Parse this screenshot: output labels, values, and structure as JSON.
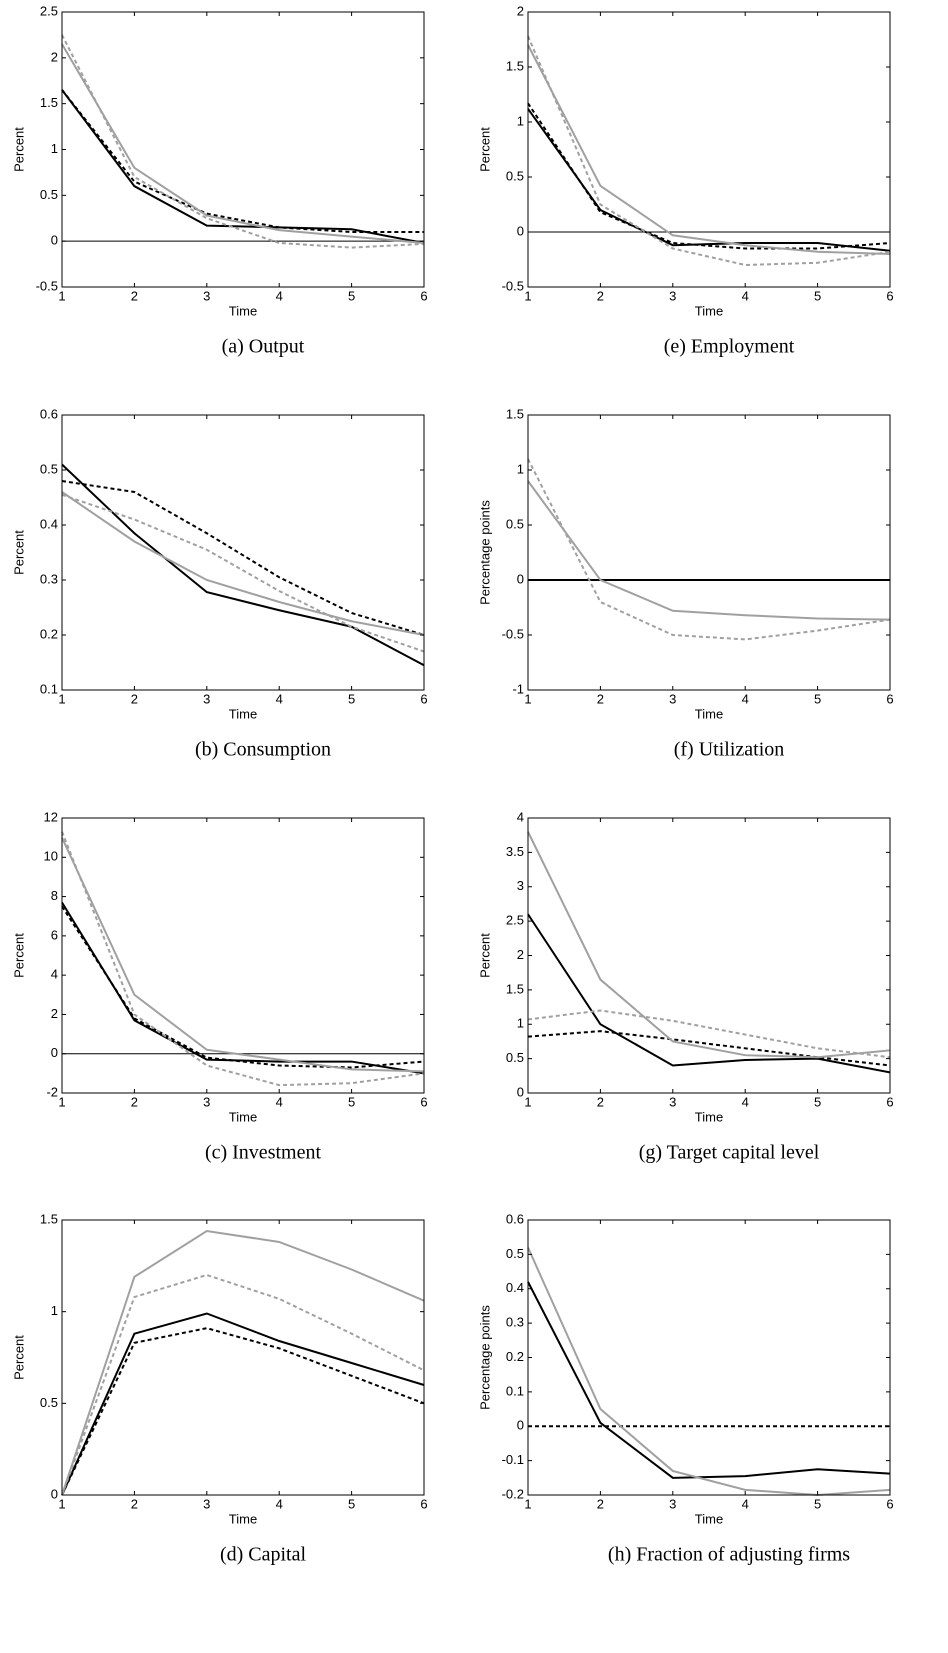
{
  "chart_data": [
    {
      "type": "line",
      "caption": "(a) Output",
      "xlabel": "Time",
      "ylabel": "Percent",
      "x": [
        1,
        2,
        3,
        4,
        5,
        6
      ],
      "xlim": [
        1,
        6
      ],
      "xticks": [
        1,
        2,
        3,
        4,
        5,
        6
      ],
      "ylim": [
        -0.5,
        2.5
      ],
      "yticks": [
        -0.5,
        0,
        0.5,
        1,
        1.5,
        2,
        2.5
      ],
      "zero_line": true,
      "series": [
        {
          "color": "#000000",
          "dash": false,
          "values": [
            1.65,
            0.6,
            0.17,
            0.15,
            0.13,
            -0.02
          ]
        },
        {
          "color": "#000000",
          "dash": true,
          "values": [
            1.65,
            0.65,
            0.3,
            0.15,
            0.1,
            0.1
          ]
        },
        {
          "color": "#a0a0a0",
          "dash": false,
          "values": [
            2.15,
            0.8,
            0.28,
            0.12,
            0.05,
            -0.02
          ]
        },
        {
          "color": "#a0a0a0",
          "dash": true,
          "values": [
            2.25,
            0.7,
            0.25,
            -0.02,
            -0.07,
            -0.03
          ]
        }
      ]
    },
    {
      "type": "line",
      "caption": "(b) Consumption",
      "xlabel": "Time",
      "ylabel": "Percent",
      "x": [
        1,
        2,
        3,
        4,
        5,
        6
      ],
      "xlim": [
        1,
        6
      ],
      "xticks": [
        1,
        2,
        3,
        4,
        5,
        6
      ],
      "ylim": [
        0.1,
        0.6
      ],
      "yticks": [
        0.1,
        0.2,
        0.3,
        0.4,
        0.5,
        0.6
      ],
      "zero_line": false,
      "series": [
        {
          "color": "#000000",
          "dash": false,
          "values": [
            0.51,
            0.385,
            0.278,
            0.245,
            0.215,
            0.145
          ]
        },
        {
          "color": "#000000",
          "dash": true,
          "values": [
            0.48,
            0.46,
            0.385,
            0.305,
            0.24,
            0.2
          ]
        },
        {
          "color": "#a0a0a0",
          "dash": false,
          "values": [
            0.46,
            0.37,
            0.3,
            0.26,
            0.225,
            0.2
          ]
        },
        {
          "color": "#a0a0a0",
          "dash": true,
          "values": [
            0.455,
            0.41,
            0.355,
            0.28,
            0.215,
            0.17
          ]
        }
      ]
    },
    {
      "type": "line",
      "caption": "(c) Investment",
      "xlabel": "Time",
      "ylabel": "Percent",
      "x": [
        1,
        2,
        3,
        4,
        5,
        6
      ],
      "xlim": [
        1,
        6
      ],
      "xticks": [
        1,
        2,
        3,
        4,
        5,
        6
      ],
      "ylim": [
        -2,
        12
      ],
      "yticks": [
        -2,
        0,
        2,
        4,
        6,
        8,
        10,
        12
      ],
      "zero_line": true,
      "series": [
        {
          "color": "#000000",
          "dash": false,
          "values": [
            7.7,
            1.7,
            -0.3,
            -0.4,
            -0.4,
            -1.0
          ]
        },
        {
          "color": "#000000",
          "dash": true,
          "values": [
            7.5,
            1.8,
            -0.2,
            -0.6,
            -0.7,
            -0.4
          ]
        },
        {
          "color": "#a0a0a0",
          "dash": false,
          "values": [
            11,
            3.0,
            0.2,
            -0.3,
            -0.8,
            -0.9
          ]
        },
        {
          "color": "#a0a0a0",
          "dash": true,
          "values": [
            11.3,
            2.0,
            -0.6,
            -1.6,
            -1.5,
            -1.0
          ]
        }
      ]
    },
    {
      "type": "line",
      "caption": "(d) Capital",
      "xlabel": "Time",
      "ylabel": "Percent",
      "x": [
        1,
        2,
        3,
        4,
        5,
        6
      ],
      "xlim": [
        1,
        6
      ],
      "xticks": [
        1,
        2,
        3,
        4,
        5,
        6
      ],
      "ylim": [
        0,
        1.5
      ],
      "yticks": [
        0,
        0.5,
        1,
        1.5
      ],
      "zero_line": false,
      "series": [
        {
          "color": "#000000",
          "dash": false,
          "values": [
            0,
            0.88,
            0.99,
            0.84,
            0.72,
            0.6
          ]
        },
        {
          "color": "#000000",
          "dash": true,
          "values": [
            0,
            0.83,
            0.91,
            0.8,
            0.65,
            0.5
          ]
        },
        {
          "color": "#a0a0a0",
          "dash": false,
          "values": [
            0,
            1.19,
            1.44,
            1.38,
            1.23,
            1.06
          ]
        },
        {
          "color": "#a0a0a0",
          "dash": true,
          "values": [
            0,
            1.08,
            1.2,
            1.07,
            0.88,
            0.68
          ]
        }
      ]
    },
    {
      "type": "line",
      "caption": "(e) Employment",
      "xlabel": "Time",
      "ylabel": "Percent",
      "x": [
        1,
        2,
        3,
        4,
        5,
        6
      ],
      "xlim": [
        1,
        6
      ],
      "xticks": [
        1,
        2,
        3,
        4,
        5,
        6
      ],
      "ylim": [
        -0.5,
        2
      ],
      "yticks": [
        -0.5,
        0,
        0.5,
        1,
        1.5,
        2
      ],
      "zero_line": true,
      "series": [
        {
          "color": "#000000",
          "dash": false,
          "values": [
            1.12,
            0.2,
            -0.12,
            -0.1,
            -0.1,
            -0.17
          ]
        },
        {
          "color": "#000000",
          "dash": true,
          "values": [
            1.17,
            0.18,
            -0.1,
            -0.15,
            -0.15,
            -0.1
          ]
        },
        {
          "color": "#a0a0a0",
          "dash": false,
          "values": [
            1.7,
            0.42,
            -0.03,
            -0.12,
            -0.18,
            -0.2
          ]
        },
        {
          "color": "#a0a0a0",
          "dash": true,
          "values": [
            1.78,
            0.25,
            -0.15,
            -0.3,
            -0.28,
            -0.18
          ]
        }
      ]
    },
    {
      "type": "line",
      "caption": "(f) Utilization",
      "xlabel": "Time",
      "ylabel": "Percentage points",
      "x": [
        1,
        2,
        3,
        4,
        5,
        6
      ],
      "xlim": [
        1,
        6
      ],
      "xticks": [
        1,
        2,
        3,
        4,
        5,
        6
      ],
      "ylim": [
        -1,
        1.5
      ],
      "yticks": [
        -1,
        -0.5,
        0,
        0.5,
        1,
        1.5
      ],
      "zero_line": false,
      "series": [
        {
          "color": "#000000",
          "dash": false,
          "values": [
            0,
            0,
            0,
            0,
            0,
            0
          ]
        },
        {
          "color": "#000000",
          "dash": true,
          "values": [
            0,
            0,
            0,
            0,
            0,
            0
          ]
        },
        {
          "color": "#a0a0a0",
          "dash": false,
          "values": [
            0.9,
            0,
            -0.28,
            -0.32,
            -0.35,
            -0.36
          ]
        },
        {
          "color": "#a0a0a0",
          "dash": true,
          "values": [
            1.1,
            -0.2,
            -0.5,
            -0.54,
            -0.46,
            -0.36
          ]
        }
      ]
    },
    {
      "type": "line",
      "caption": "(g) Target capital level",
      "xlabel": "Time",
      "ylabel": "Percent",
      "x": [
        1,
        2,
        3,
        4,
        5,
        6
      ],
      "xlim": [
        1,
        6
      ],
      "xticks": [
        1,
        2,
        3,
        4,
        5,
        6
      ],
      "ylim": [
        0,
        4
      ],
      "yticks": [
        0,
        0.5,
        1,
        1.5,
        2,
        2.5,
        3,
        3.5,
        4
      ],
      "zero_line": false,
      "series": [
        {
          "color": "#000000",
          "dash": false,
          "values": [
            2.6,
            1.0,
            0.4,
            0.48,
            0.5,
            0.3
          ]
        },
        {
          "color": "#000000",
          "dash": true,
          "values": [
            0.82,
            0.9,
            0.78,
            0.65,
            0.52,
            0.4
          ]
        },
        {
          "color": "#a0a0a0",
          "dash": false,
          "values": [
            3.8,
            1.65,
            0.75,
            0.55,
            0.52,
            0.62
          ]
        },
        {
          "color": "#a0a0a0",
          "dash": true,
          "values": [
            1.07,
            1.2,
            1.05,
            0.85,
            0.65,
            0.52
          ]
        }
      ]
    },
    {
      "type": "line",
      "caption": "(h) Fraction of adjusting firms",
      "xlabel": "Time",
      "ylabel": "Percentage points",
      "x": [
        1,
        2,
        3,
        4,
        5,
        6
      ],
      "xlim": [
        1,
        6
      ],
      "xticks": [
        1,
        2,
        3,
        4,
        5,
        6
      ],
      "ylim": [
        -0.2,
        0.6
      ],
      "yticks": [
        -0.2,
        -0.1,
        0,
        0.1,
        0.2,
        0.3,
        0.4,
        0.5,
        0.6
      ],
      "zero_line": false,
      "series": [
        {
          "color": "#000000",
          "dash": false,
          "values": [
            0.42,
            0.01,
            -0.15,
            -0.145,
            -0.125,
            -0.138
          ]
        },
        {
          "color": "#000000",
          "dash": true,
          "values": [
            0,
            0,
            0,
            0,
            0,
            0
          ]
        },
        {
          "color": "#a0a0a0",
          "dash": false,
          "values": [
            0.52,
            0.05,
            -0.13,
            -0.185,
            -0.2,
            -0.185
          ]
        }
      ]
    }
  ]
}
